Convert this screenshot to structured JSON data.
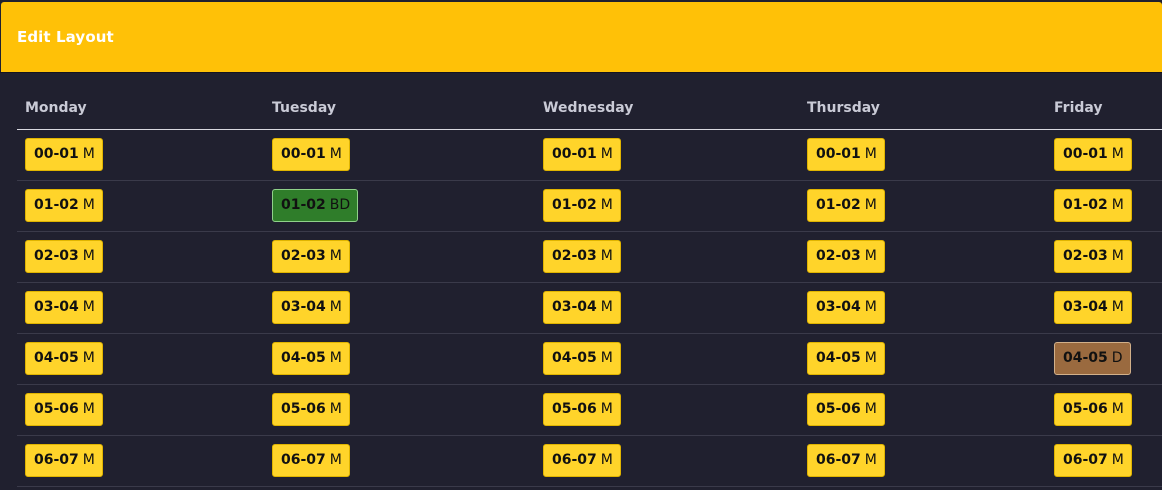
{
  "header": {
    "title": "Edit Layout",
    "color": "#ffc107"
  },
  "columns": [
    "Monday",
    "Tuesday",
    "Wednesday",
    "Thursday",
    "Friday"
  ],
  "rows": [
    [
      {
        "time": "00-01",
        "code": "M",
        "status": "yellow"
      },
      {
        "time": "00-01",
        "code": "M",
        "status": "yellow"
      },
      {
        "time": "00-01",
        "code": "M",
        "status": "yellow"
      },
      {
        "time": "00-01",
        "code": "M",
        "status": "yellow"
      },
      {
        "time": "00-01",
        "code": "M",
        "status": "yellow"
      }
    ],
    [
      {
        "time": "01-02",
        "code": "M",
        "status": "yellow"
      },
      {
        "time": "01-02",
        "code": "BD",
        "status": "green"
      },
      {
        "time": "01-02",
        "code": "M",
        "status": "yellow"
      },
      {
        "time": "01-02",
        "code": "M",
        "status": "yellow"
      },
      {
        "time": "01-02",
        "code": "M",
        "status": "yellow"
      }
    ],
    [
      {
        "time": "02-03",
        "code": "M",
        "status": "yellow"
      },
      {
        "time": "02-03",
        "code": "M",
        "status": "yellow"
      },
      {
        "time": "02-03",
        "code": "M",
        "status": "yellow"
      },
      {
        "time": "02-03",
        "code": "M",
        "status": "yellow"
      },
      {
        "time": "02-03",
        "code": "M",
        "status": "yellow"
      }
    ],
    [
      {
        "time": "03-04",
        "code": "M",
        "status": "yellow"
      },
      {
        "time": "03-04",
        "code": "M",
        "status": "yellow"
      },
      {
        "time": "03-04",
        "code": "M",
        "status": "yellow"
      },
      {
        "time": "03-04",
        "code": "M",
        "status": "yellow"
      },
      {
        "time": "03-04",
        "code": "M",
        "status": "yellow"
      }
    ],
    [
      {
        "time": "04-05",
        "code": "M",
        "status": "yellow"
      },
      {
        "time": "04-05",
        "code": "M",
        "status": "yellow"
      },
      {
        "time": "04-05",
        "code": "M",
        "status": "yellow"
      },
      {
        "time": "04-05",
        "code": "M",
        "status": "yellow"
      },
      {
        "time": "04-05",
        "code": "D",
        "status": "brown"
      }
    ],
    [
      {
        "time": "05-06",
        "code": "M",
        "status": "yellow"
      },
      {
        "time": "05-06",
        "code": "M",
        "status": "yellow"
      },
      {
        "time": "05-06",
        "code": "M",
        "status": "yellow"
      },
      {
        "time": "05-06",
        "code": "M",
        "status": "yellow"
      },
      {
        "time": "05-06",
        "code": "M",
        "status": "yellow"
      }
    ],
    [
      {
        "time": "06-07",
        "code": "M",
        "status": "yellow"
      },
      {
        "time": "06-07",
        "code": "M",
        "status": "yellow"
      },
      {
        "time": "06-07",
        "code": "M",
        "status": "yellow"
      },
      {
        "time": "06-07",
        "code": "M",
        "status": "yellow"
      },
      {
        "time": "06-07",
        "code": "M",
        "status": "yellow"
      }
    ]
  ],
  "colors": {
    "yellow": "#ffd42a",
    "green": "#2f7d2a",
    "brown": "#9a6a3f"
  }
}
